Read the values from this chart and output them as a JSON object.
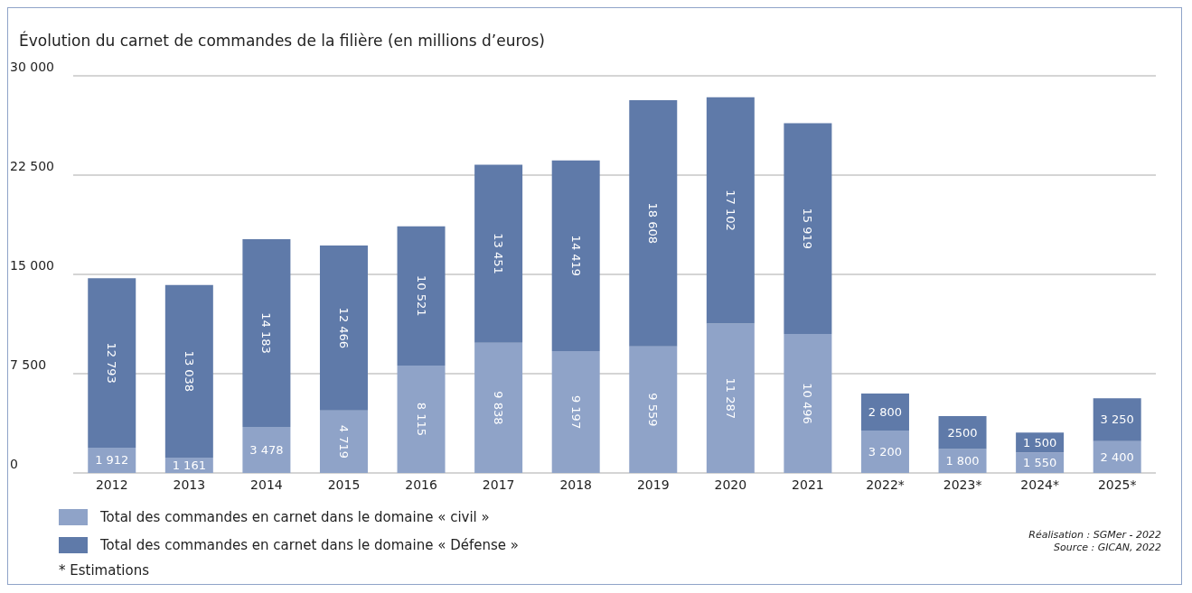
{
  "chart_data": {
    "type": "bar",
    "title": "Évolution du carnet de commandes de la filière (en millions d’euros)",
    "categories": [
      "2012",
      "2013",
      "2014",
      "2015",
      "2016",
      "2017",
      "2018",
      "2019",
      "2020",
      "2021",
      "2022*",
      "2023*",
      "2024*",
      "2025*"
    ],
    "stacked": true,
    "series": [
      {
        "name": "Total des commandes en carnet dans le domaine « civil »",
        "color": "#8fa3c8",
        "values": [
          1912,
          1161,
          3478,
          4719,
          8115,
          9838,
          9197,
          9559,
          11287,
          10496,
          3200,
          1800,
          1550,
          2400
        ],
        "value_labels": [
          "1 912",
          "1 161",
          "3 478",
          "4 719",
          "8 115",
          "9 838",
          "9 197",
          "9 559",
          "11 287",
          "10 496",
          "3 200",
          "1 800",
          "1 550",
          "2 400"
        ]
      },
      {
        "name": "Total des commandes en carnet dans le domaine « Défense »",
        "color": "#5f7aa9",
        "values": [
          12793,
          13038,
          14183,
          12466,
          10521,
          13451,
          14419,
          18608,
          17102,
          15919,
          2800,
          2500,
          1500,
          3250
        ],
        "value_labels": [
          "12 793",
          "13 038",
          "14 183",
          "12 466",
          "10 521",
          "13 451",
          "14 419",
          "18 608",
          "17 102",
          "15 919",
          "2 800",
          "2500",
          "1 500",
          "3 250"
        ]
      }
    ],
    "ylim": [
      0,
      30000
    ],
    "yticks": [
      {
        "value": 0,
        "label": "0"
      },
      {
        "value": 7500,
        "label": "7 500"
      },
      {
        "value": 15000,
        "label": "15 000"
      },
      {
        "value": 22500,
        "label": "22 500"
      },
      {
        "value": 30000,
        "label": "30 000"
      }
    ],
    "grid": "y",
    "legend": "bottom left",
    "annotations": [
      "* Estimations",
      "Réalisation : SGMer - 2022",
      "Source : GICAN, 2022"
    ]
  }
}
